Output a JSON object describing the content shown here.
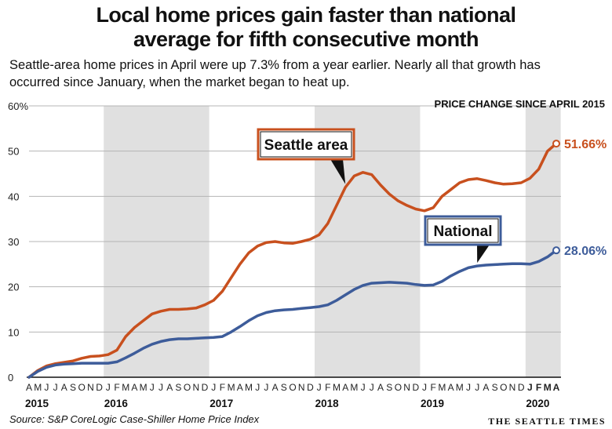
{
  "header": {
    "title_line1": "Local home prices gain faster than national",
    "title_line2": "average for fifth consecutive month",
    "subtitle_line1": "Seattle-area home prices in April were up 7.3% from a year earlier. Nearly all that growth has",
    "subtitle_line2": "occurred since January, when the market began to heat up."
  },
  "footer": {
    "source": "Source: S&P CoreLogic Case-Shiller Home Price Index",
    "brand": "THE SEATTLE TIMES"
  },
  "colors": {
    "seattle": "#c8501e",
    "national": "#3d5c9a",
    "shade": "#e0e0e0"
  },
  "chart_data": {
    "type": "line",
    "title": "PRICE CHANGE SINCE APRIL 2015",
    "ylim": [
      0,
      60
    ],
    "yticks": [
      "0",
      "10",
      "20",
      "30",
      "40",
      "50",
      "60%"
    ],
    "x_month_labels": [
      "A",
      "M",
      "J",
      "J",
      "A",
      "S",
      "O",
      "N",
      "D",
      "J",
      "F",
      "M",
      "A",
      "M",
      "J",
      "J",
      "A",
      "S",
      "O",
      "N",
      "D",
      "J",
      "F",
      "M",
      "A",
      "M",
      "J",
      "J",
      "A",
      "S",
      "O",
      "N",
      "D",
      "J",
      "F",
      "M",
      "A",
      "M",
      "J",
      "J",
      "A",
      "S",
      "O",
      "N",
      "D",
      "J",
      "F",
      "M",
      "A",
      "M",
      "J",
      "J",
      "A",
      "S",
      "O",
      "N",
      "D",
      "J",
      "F",
      "M",
      "A"
    ],
    "x_year_labels": [
      {
        "label": "2015",
        "month_index": 0
      },
      {
        "label": "2016",
        "month_index": 9
      },
      {
        "label": "2017",
        "month_index": 21
      },
      {
        "label": "2018",
        "month_index": 33
      },
      {
        "label": "2019",
        "month_index": 45
      },
      {
        "label": "2020",
        "month_index": 57
      }
    ],
    "shaded_years": [
      [
        9,
        21
      ],
      [
        33,
        45
      ],
      [
        57,
        61
      ]
    ],
    "series": [
      {
        "name": "Seattle area",
        "end_label": "51.66%",
        "values": [
          0,
          1.5,
          2.5,
          3.0,
          3.3,
          3.6,
          4.2,
          4.6,
          4.7,
          5.0,
          6.0,
          9.0,
          11.0,
          12.5,
          14.0,
          14.6,
          15.0,
          15.0,
          15.1,
          15.3,
          16.0,
          17.0,
          19.0,
          22.0,
          25.0,
          27.5,
          29.0,
          29.8,
          30.0,
          29.7,
          29.6,
          30.0,
          30.5,
          31.5,
          34.0,
          38.0,
          42.0,
          44.5,
          45.3,
          44.8,
          42.5,
          40.5,
          39.0,
          38.0,
          37.2,
          36.8,
          37.5,
          40.0,
          41.5,
          43.0,
          43.7,
          43.9,
          43.5,
          43.0,
          42.7,
          42.8,
          43.0,
          44.0,
          46.0,
          50.0,
          51.66
        ]
      },
      {
        "name": "National",
        "end_label": "28.06%",
        "values": [
          0,
          1.3,
          2.2,
          2.7,
          2.9,
          3.0,
          3.1,
          3.1,
          3.1,
          3.1,
          3.4,
          4.3,
          5.3,
          6.4,
          7.3,
          7.9,
          8.3,
          8.5,
          8.5,
          8.6,
          8.7,
          8.8,
          9.0,
          10.0,
          11.2,
          12.5,
          13.6,
          14.3,
          14.7,
          14.9,
          15.0,
          15.2,
          15.4,
          15.6,
          16.0,
          17.0,
          18.2,
          19.4,
          20.3,
          20.8,
          20.9,
          21.0,
          20.9,
          20.8,
          20.5,
          20.3,
          20.4,
          21.2,
          22.4,
          23.4,
          24.2,
          24.6,
          24.8,
          24.9,
          25.0,
          25.1,
          25.1,
          25.0,
          25.6,
          26.6,
          28.06
        ]
      }
    ]
  }
}
